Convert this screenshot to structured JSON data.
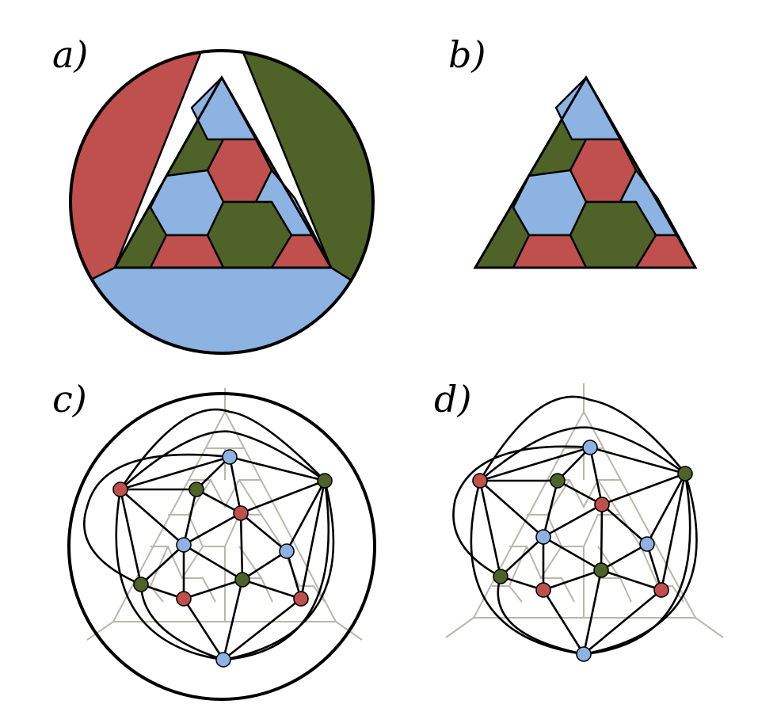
{
  "labels": {
    "a": "a)",
    "b": "b)",
    "c": "c)",
    "d": "d)"
  },
  "colors": {
    "red": "#c0504d",
    "green": "#4f6228",
    "blue": "#8db3e2",
    "outline": "#000000",
    "lattice": "#b9b6ad"
  }
}
